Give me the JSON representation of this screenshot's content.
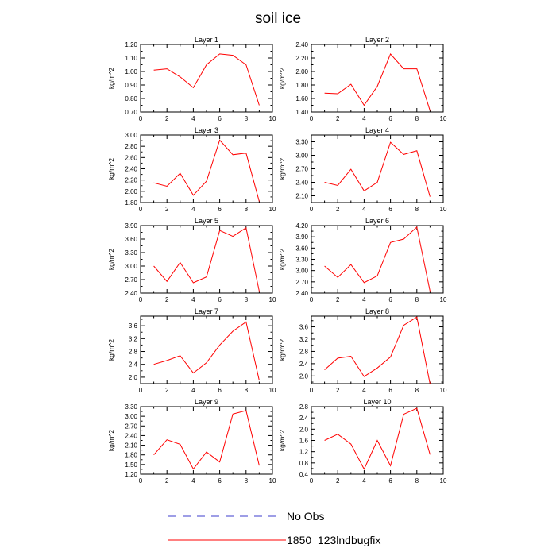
{
  "figure": {
    "title": "soil ice"
  },
  "legend": {
    "placement": "bottom-center",
    "items": [
      {
        "label": "No Obs",
        "color": "#3d3dcc",
        "style": "dashed"
      },
      {
        "label": "1850_123lndbugfix",
        "color": "#ff0000",
        "style": "solid"
      }
    ]
  },
  "colors": {
    "series": "#ff0000",
    "axes": "#000000"
  },
  "chart_data": [
    {
      "type": "line",
      "title": "Layer 1",
      "ylabel": "kg/m^2",
      "xlim": [
        0,
        10
      ],
      "xticks": [
        0,
        2,
        4,
        6,
        8,
        10
      ],
      "ylim": [
        0.7,
        1.2
      ],
      "yticks": [
        0.7,
        0.8,
        0.9,
        1.0,
        1.1,
        1.2
      ],
      "yticklabels": [
        "0.70",
        "0.80",
        "0.90",
        "1.00",
        "1.10",
        "1.20"
      ],
      "x": [
        1,
        2,
        3,
        4,
        5,
        6,
        7,
        8,
        9
      ],
      "series": [
        {
          "name": "1850_123lndbugfix",
          "values": [
            1.01,
            1.02,
            0.96,
            0.88,
            1.05,
            1.13,
            1.12,
            1.05,
            0.75
          ]
        }
      ]
    },
    {
      "type": "line",
      "title": "Layer 2",
      "ylabel": "kg/m^2",
      "xlim": [
        0,
        10
      ],
      "xticks": [
        0,
        2,
        4,
        6,
        8,
        10
      ],
      "ylim": [
        1.4,
        2.4
      ],
      "yticks": [
        1.4,
        1.6,
        1.8,
        2.0,
        2.2,
        2.4
      ],
      "yticklabels": [
        "1.40",
        "1.60",
        "1.80",
        "2.00",
        "2.20",
        "2.40"
      ],
      "x": [
        1,
        2,
        3,
        4,
        5,
        6,
        7,
        8,
        9
      ],
      "series": [
        {
          "name": "1850_123lndbugfix",
          "values": [
            1.68,
            1.67,
            1.81,
            1.5,
            1.78,
            2.26,
            2.04,
            2.04,
            1.42
          ]
        }
      ]
    },
    {
      "type": "line",
      "title": "Layer 3",
      "ylabel": "kg/m^2",
      "xlim": [
        0,
        10
      ],
      "xticks": [
        0,
        2,
        4,
        6,
        8,
        10
      ],
      "ylim": [
        1.8,
        3.0
      ],
      "yticks": [
        1.8,
        2.0,
        2.2,
        2.4,
        2.6,
        2.8,
        3.0
      ],
      "yticklabels": [
        "1.80",
        "2.00",
        "2.20",
        "2.40",
        "2.60",
        "2.80",
        "3.00"
      ],
      "x": [
        1,
        2,
        3,
        4,
        5,
        6,
        7,
        8,
        9
      ],
      "series": [
        {
          "name": "1850_123lndbugfix",
          "values": [
            2.15,
            2.09,
            2.32,
            1.93,
            2.18,
            2.91,
            2.65,
            2.68,
            1.82
          ]
        }
      ]
    },
    {
      "type": "line",
      "title": "Layer 4",
      "ylabel": "kg/m^2",
      "xlim": [
        0,
        10
      ],
      "xticks": [
        0,
        2,
        4,
        6,
        8,
        10
      ],
      "ylim": [
        1.95,
        3.45
      ],
      "yticks": [
        2.1,
        2.4,
        2.7,
        3.0,
        3.3
      ],
      "yticklabels": [
        "2.10",
        "2.40",
        "2.70",
        "3.00",
        "3.30"
      ],
      "x": [
        1,
        2,
        3,
        4,
        5,
        6,
        7,
        8,
        9
      ],
      "series": [
        {
          "name": "1850_123lndbugfix",
          "values": [
            2.4,
            2.33,
            2.69,
            2.21,
            2.4,
            3.29,
            3.02,
            3.1,
            2.08
          ]
        }
      ]
    },
    {
      "type": "line",
      "title": "Layer 5",
      "ylabel": "kg/m^2",
      "xlim": [
        0,
        10
      ],
      "xticks": [
        0,
        2,
        4,
        6,
        8,
        10
      ],
      "ylim": [
        2.4,
        3.9
      ],
      "yticks": [
        2.4,
        2.7,
        3.0,
        3.3,
        3.6,
        3.9
      ],
      "yticklabels": [
        "2.40",
        "2.70",
        "3.00",
        "3.30",
        "3.60",
        "3.90"
      ],
      "x": [
        1,
        2,
        3,
        4,
        5,
        6,
        7,
        8,
        9
      ],
      "series": [
        {
          "name": "1850_123lndbugfix",
          "values": [
            3.0,
            2.66,
            3.08,
            2.63,
            2.76,
            3.79,
            3.66,
            3.85,
            2.44
          ]
        }
      ]
    },
    {
      "type": "line",
      "title": "Layer 6",
      "ylabel": "kg/m^2",
      "xlim": [
        0,
        10
      ],
      "xticks": [
        0,
        2,
        4,
        6,
        8,
        10
      ],
      "ylim": [
        2.4,
        4.2
      ],
      "yticks": [
        2.4,
        2.7,
        3.0,
        3.3,
        3.6,
        3.9,
        4.2
      ],
      "yticklabels": [
        "2.40",
        "2.70",
        "3.00",
        "3.30",
        "3.60",
        "3.90",
        "4.20"
      ],
      "x": [
        1,
        2,
        3,
        4,
        5,
        6,
        7,
        8,
        9
      ],
      "series": [
        {
          "name": "1850_123lndbugfix",
          "values": [
            3.12,
            2.82,
            3.16,
            2.68,
            2.86,
            3.75,
            3.84,
            4.16,
            2.45
          ]
        }
      ]
    },
    {
      "type": "line",
      "title": "Layer 7",
      "ylabel": "kg/m^2",
      "xlim": [
        0,
        10
      ],
      "xticks": [
        0,
        2,
        4,
        6,
        8,
        10
      ],
      "ylim": [
        1.8,
        3.9
      ],
      "yticks": [
        2.0,
        2.4,
        2.8,
        3.2,
        3.6
      ],
      "yticklabels": [
        "2.0",
        "2.4",
        "2.8",
        "3.2",
        "3.6"
      ],
      "x": [
        1,
        2,
        3,
        4,
        5,
        6,
        7,
        8,
        9
      ],
      "series": [
        {
          "name": "1850_123lndbugfix",
          "values": [
            2.4,
            2.52,
            2.67,
            2.13,
            2.45,
            3.0,
            3.43,
            3.72,
            1.9
          ]
        }
      ]
    },
    {
      "type": "line",
      "title": "Layer 8",
      "ylabel": "kg/m^2",
      "xlim": [
        0,
        10
      ],
      "xticks": [
        0,
        2,
        4,
        6,
        8,
        10
      ],
      "ylim": [
        1.75,
        3.95
      ],
      "yticks": [
        2.0,
        2.4,
        2.8,
        3.2,
        3.6
      ],
      "yticklabels": [
        "2.0",
        "2.4",
        "2.8",
        "3.2",
        "3.6"
      ],
      "x": [
        1,
        2,
        3,
        4,
        5,
        6,
        7,
        8,
        9
      ],
      "series": [
        {
          "name": "1850_123lndbugfix",
          "values": [
            2.2,
            2.58,
            2.64,
            1.98,
            2.26,
            2.62,
            3.65,
            3.92,
            1.74
          ]
        }
      ]
    },
    {
      "type": "line",
      "title": "Layer 9",
      "ylabel": "kg/m^2",
      "xlim": [
        0,
        10
      ],
      "xticks": [
        0,
        2,
        4,
        6,
        8,
        10
      ],
      "ylim": [
        1.2,
        3.3
      ],
      "yticks": [
        1.2,
        1.5,
        1.8,
        2.1,
        2.4,
        2.7,
        3.0,
        3.3
      ],
      "yticklabels": [
        "1.20",
        "1.50",
        "1.80",
        "2.10",
        "2.40",
        "2.70",
        "3.00",
        "3.30"
      ],
      "x": [
        1,
        2,
        3,
        4,
        5,
        6,
        7,
        8,
        9
      ],
      "series": [
        {
          "name": "1850_123lndbugfix",
          "values": [
            1.8,
            2.27,
            2.13,
            1.36,
            1.89,
            1.58,
            3.07,
            3.18,
            1.47
          ]
        }
      ]
    },
    {
      "type": "line",
      "title": "Layer 10",
      "ylabel": "kg/m^2",
      "xlim": [
        0,
        10
      ],
      "xticks": [
        0,
        2,
        4,
        6,
        8,
        10
      ],
      "ylim": [
        0.4,
        2.8
      ],
      "yticks": [
        0.4,
        0.8,
        1.2,
        1.6,
        2.0,
        2.4,
        2.8
      ],
      "yticklabels": [
        "0.4",
        "0.8",
        "1.2",
        "1.6",
        "2.0",
        "2.4",
        "2.8"
      ],
      "x": [
        1,
        2,
        3,
        4,
        5,
        6,
        7,
        8,
        9
      ],
      "series": [
        {
          "name": "1850_123lndbugfix",
          "values": [
            1.6,
            1.82,
            1.47,
            0.58,
            1.6,
            0.7,
            2.53,
            2.74,
            1.1
          ]
        }
      ]
    }
  ]
}
